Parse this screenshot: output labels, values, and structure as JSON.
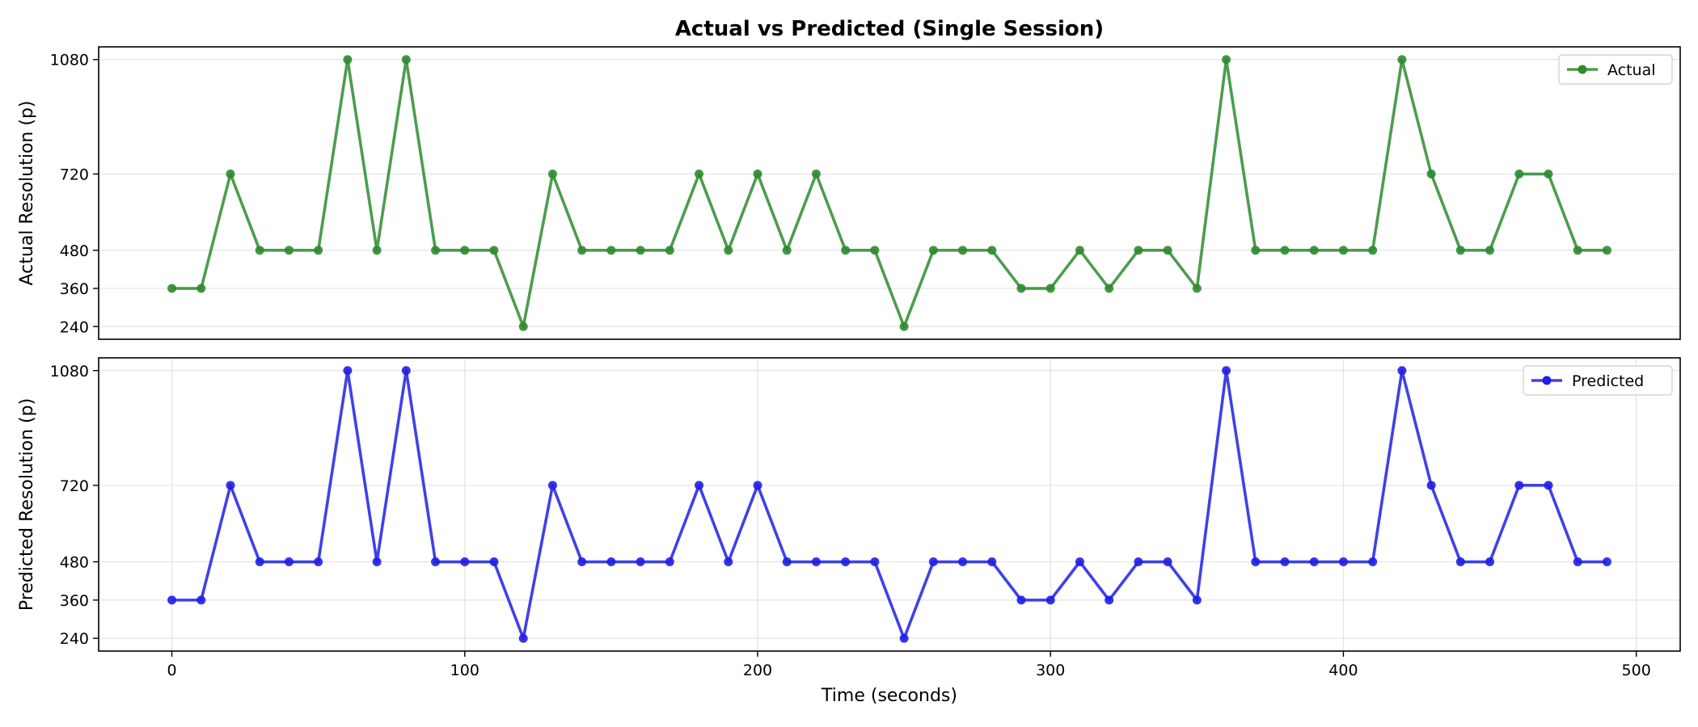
{
  "chart_data": {
    "type": "line",
    "title": "Actual vs Predicted (Single Session)",
    "xlabel": "Time (seconds)",
    "x": [
      0,
      10,
      20,
      30,
      40,
      50,
      60,
      70,
      80,
      90,
      100,
      110,
      120,
      130,
      140,
      150,
      160,
      170,
      180,
      190,
      200,
      210,
      220,
      230,
      240,
      250,
      260,
      270,
      280,
      290,
      300,
      310,
      320,
      330,
      340,
      350,
      360,
      370,
      380,
      390,
      400,
      410,
      420,
      430,
      440,
      450,
      460,
      470,
      480,
      490
    ],
    "xlim": [
      -25,
      515
    ],
    "xticks": [
      0,
      100,
      200,
      300,
      400,
      500
    ],
    "yticks": [
      240,
      360,
      480,
      720,
      1080
    ],
    "ylim": [
      200,
      1120
    ],
    "panels": [
      {
        "ylabel": "Actual Resolution (p)",
        "series": [
          {
            "name": "Actual",
            "color": "#2e8b2e",
            "values": [
              360,
              360,
              720,
              480,
              480,
              480,
              1080,
              480,
              1080,
              480,
              480,
              480,
              240,
              720,
              480,
              480,
              480,
              480,
              720,
              480,
              720,
              480,
              720,
              480,
              480,
              240,
              480,
              480,
              480,
              360,
              360,
              480,
              360,
              480,
              480,
              360,
              1080,
              480,
              480,
              480,
              480,
              480,
              1080,
              720,
              480,
              480,
              720,
              720,
              480,
              480
            ]
          }
        ],
        "legend": "top-right",
        "grid": "y"
      },
      {
        "ylabel": "Predicted Resolution (p)",
        "series": [
          {
            "name": "Predicted",
            "color": "#1f1fe6",
            "values": [
              360,
              360,
              720,
              480,
              480,
              480,
              1080,
              480,
              1080,
              480,
              480,
              480,
              240,
              720,
              480,
              480,
              480,
              480,
              720,
              480,
              720,
              480,
              480,
              480,
              480,
              240,
              480,
              480,
              480,
              360,
              360,
              480,
              360,
              480,
              480,
              360,
              1080,
              480,
              480,
              480,
              480,
              480,
              1080,
              720,
              480,
              480,
              720,
              720,
              480,
              480
            ]
          }
        ],
        "legend": "top-right",
        "grid": "both"
      }
    ]
  }
}
